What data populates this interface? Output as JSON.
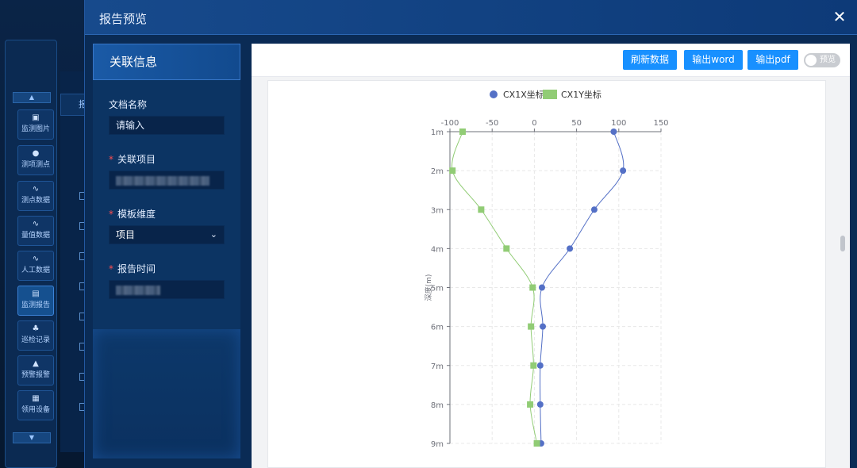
{
  "sidebar": {
    "items": [
      {
        "label": "监测图片",
        "icon": "image-icon",
        "glyph": "▣"
      },
      {
        "label": "测项测点",
        "icon": "point-icon",
        "glyph": "●"
      },
      {
        "label": "测点数据",
        "icon": "pulse-icon",
        "glyph": "∿"
      },
      {
        "label": "量值数据",
        "icon": "pulse-icon",
        "glyph": "∿"
      },
      {
        "label": "人工数据",
        "icon": "pulse-icon",
        "glyph": "∿"
      },
      {
        "label": "监测报告",
        "icon": "report-icon",
        "glyph": "▤"
      },
      {
        "label": "巡检记录",
        "icon": "inspect-icon",
        "glyph": "♣"
      },
      {
        "label": "预警报警",
        "icon": "alarm-icon",
        "glyph": "▲"
      },
      {
        "label": "领用设备",
        "icon": "device-icon",
        "glyph": "▦"
      }
    ],
    "up_glyph": "▲",
    "down_glyph": "▼",
    "tab_fragment": "报"
  },
  "modal": {
    "title": "报告预览",
    "close_glyph": "✕"
  },
  "left": {
    "header": "关联信息",
    "doc_name_label": "文档名称",
    "doc_name_placeholder": "请输入",
    "project_label": "关联项目",
    "template_label": "模板维度",
    "template_value": "项目",
    "time_label": "报告时间",
    "required_mark": "*",
    "chevron_glyph": "⌄"
  },
  "toolbar": {
    "refresh_label": "刷新数据",
    "word_label": "输出word",
    "pdf_label": "输出pdf",
    "preview_label": "预览"
  },
  "chart_data": {
    "type": "line",
    "ylabel": "深度(m)",
    "x_ticks": [
      -100,
      -50,
      0,
      50,
      100,
      150
    ],
    "xlim": [
      -100,
      150
    ],
    "y_categories": [
      "1m",
      "2m",
      "3m",
      "4m",
      "5m",
      "6m",
      "7m",
      "8m",
      "9m"
    ],
    "grid": true,
    "legend_position": "top",
    "series": [
      {
        "name": "CX1X坐标",
        "color": "#5470c6",
        "marker": "circle",
        "values": [
          94,
          105,
          71,
          42,
          9,
          10,
          7,
          7,
          8
        ]
      },
      {
        "name": "CX1Y坐标",
        "color": "#91cc75",
        "marker": "square",
        "values": [
          -85,
          -97,
          -63,
          -33,
          -2,
          -4,
          -1,
          -5,
          3
        ]
      }
    ]
  }
}
